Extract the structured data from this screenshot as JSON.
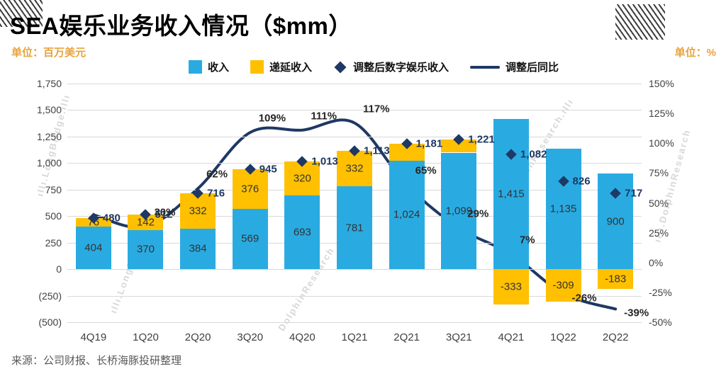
{
  "page": {
    "title": "SEA娱乐业务收入情况（$mm）",
    "unit_left": "单位：百万美元",
    "unit_right": "单位：%",
    "source": "来源：公司财报、长桥海豚投研整理"
  },
  "watermarks": {
    "texts": [
      "ıllı.LongBridge.ıllı",
      "DolphinResearch.ıllı",
      "DolphinResearch",
      "ıllı.DolphinResearch",
      "ıllı.LongBridge"
    ]
  },
  "colors": {
    "revenue_bar": "#29ABE2",
    "deferred_bar": "#FFC000",
    "line": "#1F3864",
    "unit_text": "#E8A33D",
    "grid": "#D9D9D9"
  },
  "chart_data": {
    "type": "bar",
    "title": "SEA娱乐业务收入情况（$mm）",
    "categories": [
      "4Q19",
      "1Q20",
      "2Q20",
      "3Q20",
      "4Q20",
      "1Q21",
      "2Q21",
      "3Q21",
      "4Q21",
      "1Q22",
      "2Q22"
    ],
    "series": [
      {
        "name": "收入",
        "type": "bar",
        "axis": "left",
        "values": [
          404,
          370,
          384,
          569,
          693,
          781,
          1024,
          1099,
          1415,
          1135,
          900
        ],
        "labels": [
          "404",
          "370",
          "384",
          "569",
          "693",
          "781",
          "1,024",
          "1,099",
          "1,415",
          "1,135",
          "900"
        ]
      },
      {
        "name": "递延收入",
        "type": "bar",
        "axis": "left",
        "stacked_on": "收入",
        "values": [
          76,
          142,
          332,
          376,
          320,
          332,
          157,
          122,
          -333,
          -309,
          -183
        ],
        "labels": [
          "76",
          "142",
          "332",
          "376",
          "320",
          "332",
          "",
          "",
          "-333",
          "-309",
          "-183"
        ]
      },
      {
        "name": "调整后数字娱乐收入",
        "type": "scatter",
        "marker": "diamond",
        "axis": "left",
        "values": [
          480,
          512,
          716,
          945,
          1013,
          1113,
          1181,
          1221,
          1082,
          826,
          717
        ],
        "labels": [
          "480",
          "512",
          "716",
          "945",
          "1,013",
          "1,113",
          "1,181",
          "1,221",
          "1,082",
          "826",
          "717"
        ]
      },
      {
        "name": "调整后同比",
        "type": "line",
        "axis": "right",
        "values": [
          40,
          30,
          62,
          109,
          111,
          117,
          65,
          29,
          7,
          -26,
          -39
        ],
        "labels": [
          "",
          "30%",
          "62%",
          "109%",
          "111%",
          "117%",
          "65%",
          "29%",
          "7%",
          "-26%",
          "-39%"
        ]
      }
    ],
    "left_axis": {
      "min": -500,
      "max": 1750,
      "ticks": [
        "1,750",
        "1,500",
        "1,250",
        "1,000",
        "750",
        "500",
        "250",
        "0",
        "(250)",
        "(500)"
      ]
    },
    "right_axis": {
      "min": -50,
      "max": 150,
      "ticks": [
        "150%",
        "125%",
        "100%",
        "75%",
        "50%",
        "25%",
        "0%",
        "-25%",
        "-50%"
      ]
    },
    "legend_position": "top",
    "grid": true
  }
}
